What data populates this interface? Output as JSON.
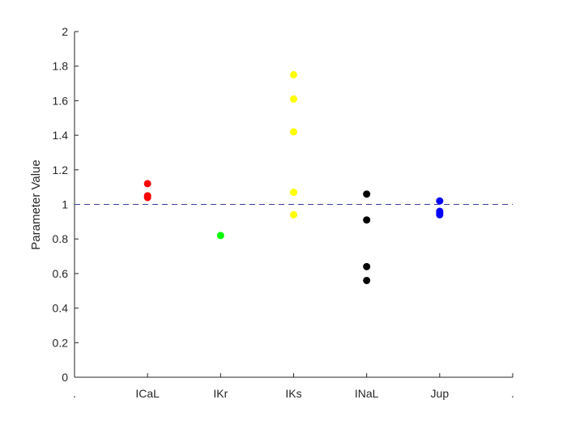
{
  "chart_data": {
    "type": "scatter",
    "ylabel": "Parameter Value",
    "xlabel": "",
    "title": "",
    "ylim": [
      0,
      2
    ],
    "y_ticks": [
      0,
      0.2,
      0.4,
      0.6,
      0.8,
      1,
      1.2,
      1.4,
      1.6,
      1.8,
      2
    ],
    "y_tick_labels": [
      "0",
      "0.2",
      "0.4",
      "0.6",
      "0.8",
      "1",
      "1.2",
      "1.4",
      "1.6",
      "1.8",
      "2"
    ],
    "x_tick_labels": [
      ".",
      "ICaL",
      "IKr",
      "IKs",
      "INaL",
      "Jup",
      "."
    ],
    "reference_line": {
      "y": 1,
      "style": "dashed",
      "color": "#3a3aa0"
    },
    "grid": false,
    "series": [
      {
        "category": "ICaL",
        "color": "#ff0000",
        "values": [
          1.12,
          1.05,
          1.04
        ]
      },
      {
        "category": "IKr",
        "color": "#00ff00",
        "values": [
          0.82
        ]
      },
      {
        "category": "IKs",
        "color": "#ffff00",
        "values": [
          1.75,
          1.61,
          1.42,
          1.07,
          0.94
        ]
      },
      {
        "category": "INaL",
        "color": "#000000",
        "values": [
          1.06,
          0.91,
          0.64,
          0.56
        ]
      },
      {
        "category": "Jup",
        "color": "#0000ff",
        "values": [
          1.02,
          0.96,
          0.95,
          0.94
        ]
      }
    ]
  }
}
